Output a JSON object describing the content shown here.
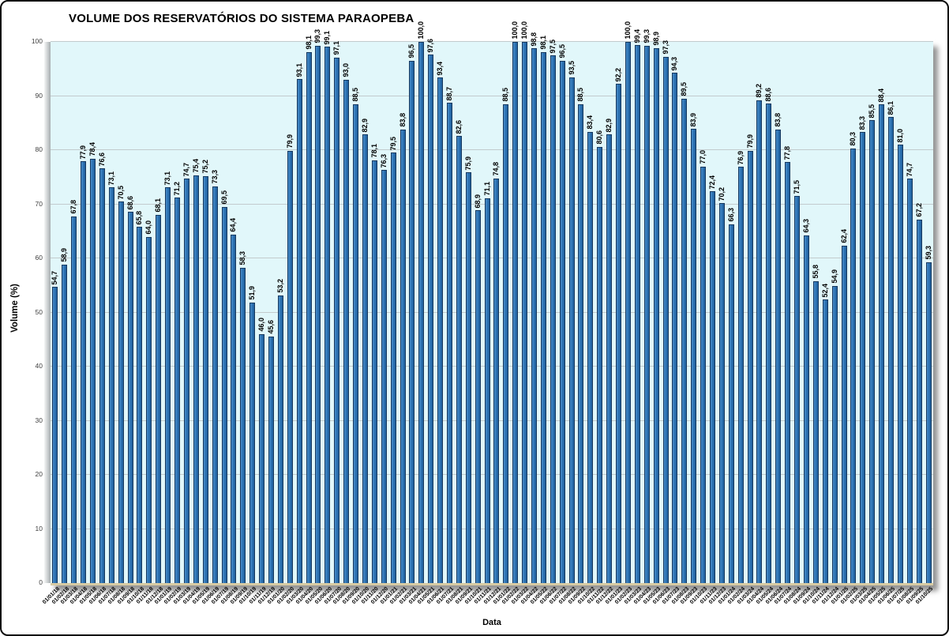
{
  "chart_data": {
    "type": "bar",
    "title": "VOLUME DOS RESERVATÓRIOS DO SISTEMA PARAOPEBA",
    "xlabel": "Data",
    "ylabel": "Volume (%)",
    "ylim": [
      0,
      100
    ],
    "y_ticks": [
      0,
      10,
      20,
      30,
      40,
      50,
      60,
      70,
      80,
      90,
      100
    ],
    "grid": true,
    "legend": false,
    "decimal_separator": ",",
    "value_label_rotation": 90,
    "x_label_rotation": 45,
    "colors": {
      "bar_fill": "#2e75b6",
      "bar_border": "#17395f",
      "plot_bg": "#e1f7fa",
      "gridline": "#c2cbcd",
      "label_text": "#000000",
      "tick_text": "#3f3f3f",
      "frame_border": "#0a0a0a"
    },
    "categories": [
      "01/01/18",
      "01/02/18",
      "01/03/18",
      "01/04/18",
      "01/05/18",
      "01/06/18",
      "01/07/18",
      "01/08/18",
      "01/09/18",
      "01/10/18",
      "01/11/18",
      "01/12/18",
      "01/01/19",
      "01/02/19",
      "01/03/19",
      "01/04/19",
      "01/05/19",
      "01/06/19",
      "01/07/19",
      "01/08/19",
      "01/09/19",
      "01/10/19",
      "01/11/19",
      "01/12/19",
      "01/01/20",
      "01/02/20",
      "01/03/20",
      "01/04/20",
      "01/05/20",
      "01/06/20",
      "01/07/20",
      "01/08/20",
      "01/09/20",
      "01/10/20",
      "01/11/20",
      "01/12/20",
      "01/01/21",
      "01/02/21",
      "01/03/21",
      "01/04/21",
      "01/05/21",
      "01/06/21",
      "01/07/21",
      "01/08/21",
      "01/09/21",
      "01/10/21",
      "01/11/21",
      "01/12/21",
      "01/01/22",
      "01/02/22",
      "01/03/22",
      "01/04/22",
      "01/05/22",
      "01/06/22",
      "01/07/22",
      "01/08/22",
      "01/09/22",
      "01/10/22",
      "01/11/22",
      "01/12/22",
      "01/01/23",
      "01/02/23",
      "01/03/23",
      "01/04/23",
      "01/05/23",
      "01/06/23",
      "01/07/23",
      "01/08/23",
      "01/09/23",
      "01/10/23",
      "01/11/23",
      "01/12/23",
      "01/01/24",
      "01/02/24",
      "01/03/24",
      "01/04/24",
      "01/05/24",
      "01/06/24",
      "01/07/24",
      "01/08/24",
      "01/09/24",
      "01/10/24",
      "01/11/24",
      "01/12/24",
      "01/01/25",
      "01/02/25",
      "01/03/25",
      "01/04/25",
      "01/05/25",
      "01/06/25",
      "01/07/25",
      "01/08/25",
      "01/09/25",
      "01/10/25"
    ],
    "values": [
      54.7,
      58.9,
      67.8,
      77.9,
      78.4,
      76.6,
      73.1,
      70.5,
      68.6,
      65.8,
      64.0,
      68.1,
      73.1,
      71.2,
      74.7,
      75.4,
      75.2,
      73.3,
      69.5,
      64.4,
      58.3,
      51.9,
      46.0,
      45.6,
      53.2,
      79.9,
      93.1,
      98.1,
      99.3,
      99.1,
      97.1,
      93.0,
      88.5,
      82.9,
      78.1,
      76.3,
      79.5,
      83.8,
      96.5,
      100.0,
      97.6,
      93.4,
      88.7,
      82.6,
      75.9,
      68.9,
      71.1,
      74.8,
      88.5,
      100.0,
      100.0,
      98.8,
      98.1,
      97.5,
      96.5,
      93.5,
      88.5,
      83.4,
      80.6,
      82.9,
      92.2,
      100.0,
      99.4,
      99.3,
      98.9,
      97.3,
      94.3,
      89.5,
      83.9,
      77.0,
      72.4,
      70.2,
      66.3,
      76.9,
      79.9,
      89.2,
      88.6,
      83.8,
      77.8,
      71.5,
      64.3,
      55.8,
      52.4,
      54.9,
      62.4,
      80.3,
      83.3,
      85.5,
      88.4,
      86.1,
      81.0,
      74.7,
      67.2,
      59.3
    ]
  }
}
